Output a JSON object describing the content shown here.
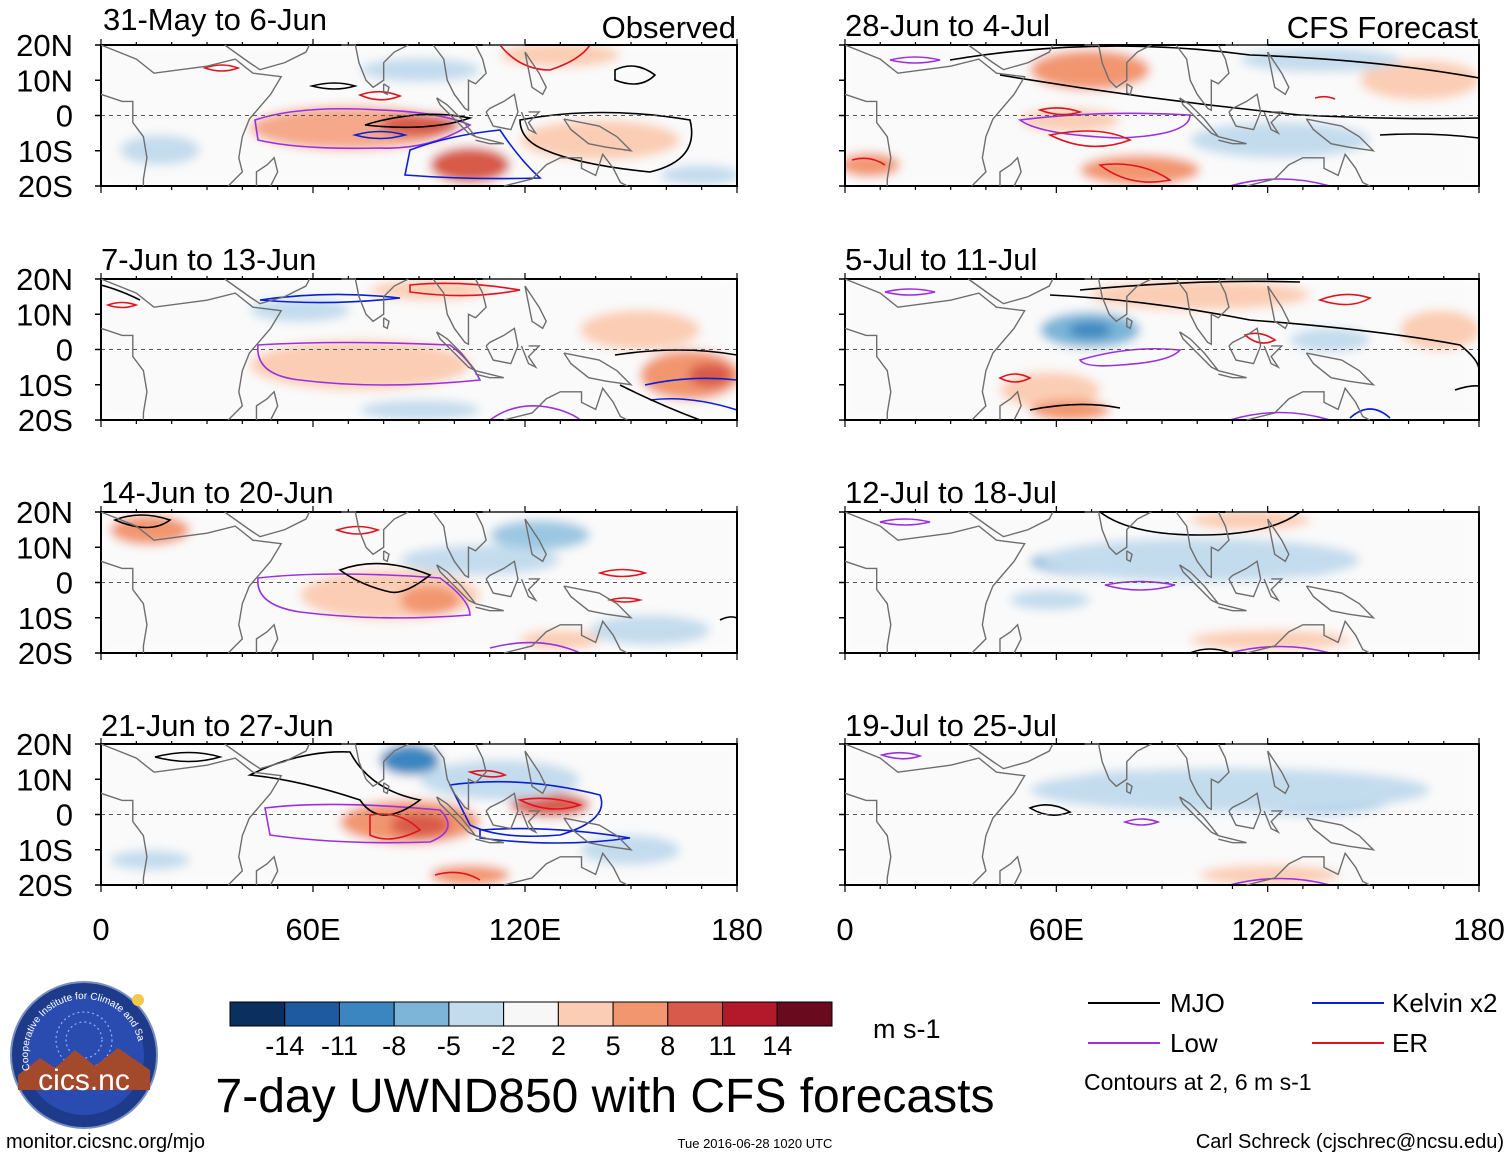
{
  "chart_data": {
    "type": "heatmap",
    "title": "7-day UWND850 with CFS forecasts",
    "variable": "850 hPa zonal wind anomaly",
    "units": "m s-1",
    "column_labels": [
      "Observed",
      "CFS Forecast"
    ],
    "lat_ticks": [
      "20N",
      "10N",
      "0",
      "10S",
      "20S"
    ],
    "lon_ticks": [
      "0",
      "60E",
      "120E",
      "180"
    ],
    "lat_range": [
      -20,
      20
    ],
    "lon_range": [
      0,
      180
    ],
    "colorbar": {
      "ticks": [
        "-14",
        "-11",
        "-8",
        "-5",
        "-2",
        "2",
        "5",
        "8",
        "11",
        "14"
      ],
      "colors": [
        "#0b2f5e",
        "#1d5aa0",
        "#3b86c0",
        "#7cb5d8",
        "#c3dced",
        "#f7f7f7",
        "#fbcdb4",
        "#f2966f",
        "#d85a4a",
        "#b3182b",
        "#6a0a1f"
      ]
    },
    "legend": {
      "items": [
        {
          "name": "MJO",
          "color": "#000000"
        },
        {
          "name": "Kelvin x2",
          "color": "#0a1fd6"
        },
        {
          "name": "Low",
          "color": "#9b30e0"
        },
        {
          "name": "ER",
          "color": "#e0141e"
        }
      ],
      "note": "Contours at 2, 6 m s-1"
    },
    "panels": [
      {
        "label": "31-May to 6-Jun",
        "column": "Observed"
      },
      {
        "label": "7-Jun to 13-Jun",
        "column": "Observed"
      },
      {
        "label": "14-Jun to 20-Jun",
        "column": "Observed"
      },
      {
        "label": "21-Jun to 27-Jun",
        "column": "Observed"
      },
      {
        "label": "28-Jun to 4-Jul",
        "column": "CFS Forecast"
      },
      {
        "label": "5-Jul to 11-Jul",
        "column": "CFS Forecast"
      },
      {
        "label": "12-Jul to 18-Jul",
        "column": "CFS Forecast"
      },
      {
        "label": "19-Jul to 25-Jul",
        "column": "CFS Forecast"
      }
    ]
  },
  "logo": {
    "text": "cics.nc",
    "ring_text": "Cooperative Institute for Climate and Satellites"
  },
  "footer": {
    "left": "monitor.cicsnc.org/mjo",
    "center": "Tue 2016-06-28 1020 UTC",
    "right": "Carl Schreck (cjschrec@ncsu.edu)"
  }
}
